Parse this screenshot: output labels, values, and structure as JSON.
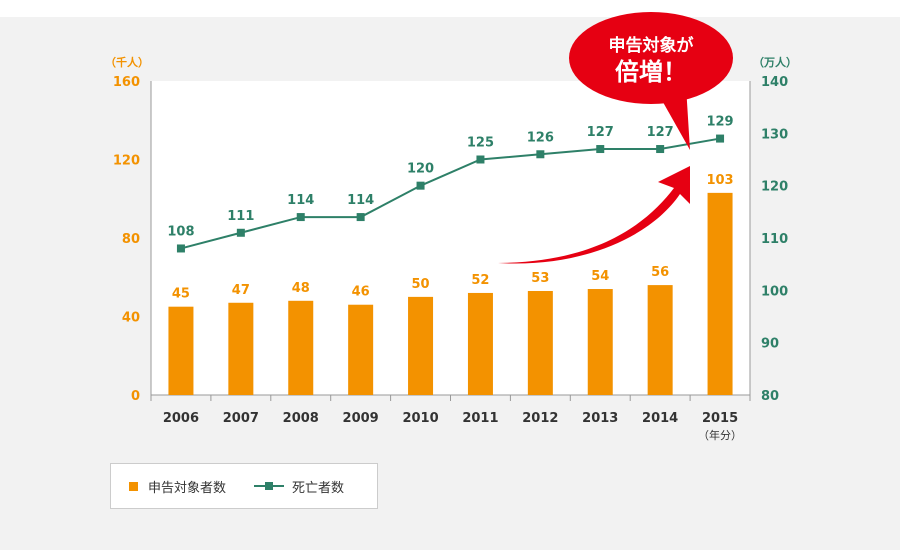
{
  "chart_data": {
    "type": "bar+line",
    "categories": [
      "2006",
      "2007",
      "2008",
      "2009",
      "2010",
      "2011",
      "2012",
      "2013",
      "2014",
      "2015"
    ],
    "x_unit": "（年分）",
    "series": [
      {
        "name": "申告対象者数",
        "type": "bar",
        "axis": "left",
        "color": "#f39200",
        "values": [
          45,
          47,
          48,
          46,
          50,
          52,
          53,
          54,
          56,
          103
        ]
      },
      {
        "name": "死亡者数",
        "type": "line",
        "axis": "right",
        "color": "#2e8068",
        "values": [
          108,
          111,
          114,
          114,
          120,
          125,
          126,
          127,
          127,
          129
        ]
      }
    ],
    "y_left": {
      "unit": "（千人）",
      "ylim": [
        0,
        160
      ],
      "ticks": [
        0,
        40,
        80,
        120,
        160
      ],
      "color": "#f39200"
    },
    "y_right": {
      "unit": "（万人）",
      "ylim": [
        80,
        140
      ],
      "ticks": [
        80,
        90,
        100,
        110,
        120,
        130,
        140
      ],
      "color": "#2e8068"
    },
    "callout": {
      "line1": "申告対象が",
      "line2": "倍増！",
      "color": "#e60012"
    },
    "legend_position": "bottom-left"
  }
}
